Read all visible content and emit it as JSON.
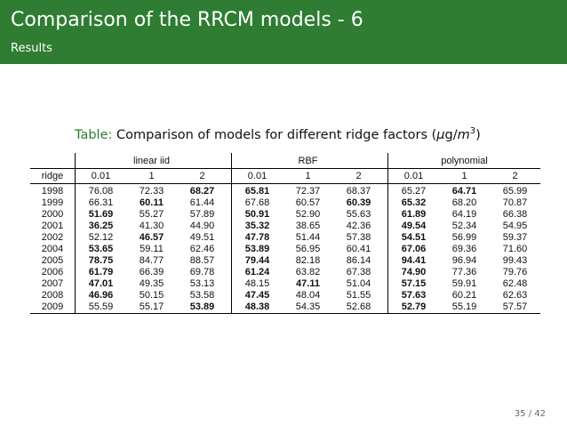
{
  "header": {
    "title": "Comparison of the RRCM models - 6",
    "subtitle": "Results"
  },
  "caption": {
    "label": "Table:",
    "text": "Comparison of models for different ridge factors (",
    "unit_mu": "μ",
    "unit_g": "g/",
    "unit_m": "m",
    "unit_exp": "3",
    "close": ")"
  },
  "table": {
    "groups": [
      "linear iid",
      "RBF",
      "polynomial"
    ],
    "row_header": "ridge",
    "sub_headers": [
      "0.01",
      "1",
      "2",
      "0.01",
      "1",
      "2",
      "0.01",
      "1",
      "2"
    ],
    "rows": [
      {
        "year": "1998",
        "values": [
          "76.08",
          "72.33",
          "68.27",
          "65.81",
          "72.37",
          "68.37",
          "65.27",
          "64.71",
          "65.99"
        ],
        "bold": [
          2,
          3,
          7
        ]
      },
      {
        "year": "1999",
        "values": [
          "66.31",
          "60.11",
          "61.44",
          "67.68",
          "60.57",
          "60.39",
          "65.32",
          "68.20",
          "70.87"
        ],
        "bold": [
          1,
          5,
          6
        ]
      },
      {
        "year": "2000",
        "values": [
          "51.69",
          "55.27",
          "57.89",
          "50.91",
          "52.90",
          "55.63",
          "61.89",
          "64.19",
          "66.38"
        ],
        "bold": [
          0,
          3,
          6
        ]
      },
      {
        "year": "2001",
        "values": [
          "36.25",
          "41.30",
          "44.90",
          "35.32",
          "38.65",
          "42.36",
          "49.54",
          "52.34",
          "54.95"
        ],
        "bold": [
          0,
          3,
          6
        ]
      },
      {
        "year": "2002",
        "values": [
          "52.12",
          "46.57",
          "49.51",
          "47.78",
          "51.44",
          "57.38",
          "54.51",
          "56.99",
          "59.37"
        ],
        "bold": [
          1,
          3,
          6
        ]
      },
      {
        "year": "2004",
        "values": [
          "53.65",
          "59.11",
          "62.46",
          "53.89",
          "56.95",
          "60.41",
          "67.06",
          "69.36",
          "71.60"
        ],
        "bold": [
          0,
          3,
          6
        ]
      },
      {
        "year": "2005",
        "values": [
          "78.75",
          "84.77",
          "88.57",
          "79.44",
          "82.18",
          "86.14",
          "94.41",
          "96.94",
          "99.43"
        ],
        "bold": [
          0,
          3,
          6
        ]
      },
      {
        "year": "2006",
        "values": [
          "61.79",
          "66.39",
          "69.78",
          "61.24",
          "63.82",
          "67.38",
          "74.90",
          "77.36",
          "79.76"
        ],
        "bold": [
          0,
          3,
          6
        ]
      },
      {
        "year": "2007",
        "values": [
          "47.01",
          "49.35",
          "53.13",
          "48.15",
          "47.11",
          "51.04",
          "57.15",
          "59.91",
          "62.48"
        ],
        "bold": [
          0,
          4,
          6
        ]
      },
      {
        "year": "2008",
        "values": [
          "46.96",
          "50.15",
          "53.58",
          "47.45",
          "48.04",
          "51.55",
          "57.63",
          "60.21",
          "62.63"
        ],
        "bold": [
          0,
          3,
          6
        ]
      },
      {
        "year": "2009",
        "values": [
          "55.59",
          "55.17",
          "53.89",
          "48.38",
          "54.35",
          "52.68",
          "52.79",
          "55.19",
          "57.57"
        ],
        "bold": [
          2,
          3,
          6
        ]
      }
    ]
  },
  "page_number": "35 / 42"
}
